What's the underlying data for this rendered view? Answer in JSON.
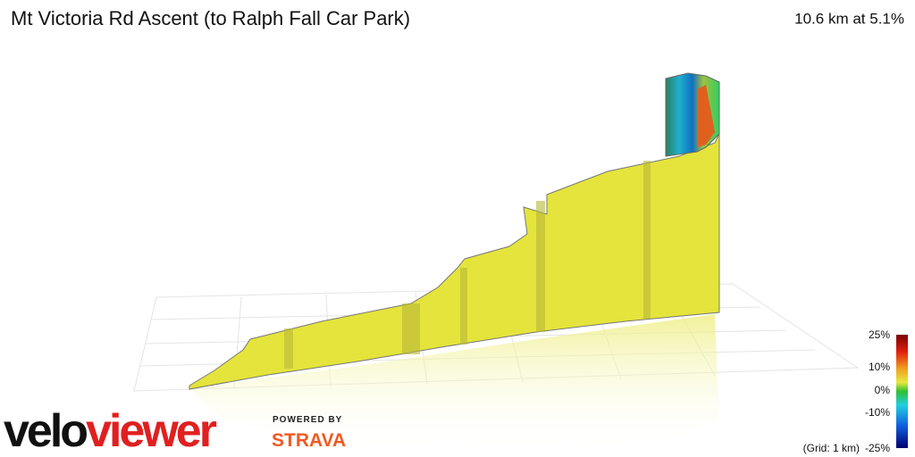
{
  "header": {
    "title": "Mt Victoria Rd Ascent (to Ralph Fall Car Park)",
    "summary": "10.6 km at 5.1%"
  },
  "legend": {
    "labels": [
      "25%",
      "10%",
      "0%",
      "-10%",
      "-25%"
    ],
    "grid_note": "(Grid: 1 km)"
  },
  "branding": {
    "logo_first": "velo",
    "logo_second": "viewer",
    "powered_by": "POWERED BY",
    "partner": "STRAVA"
  }
}
